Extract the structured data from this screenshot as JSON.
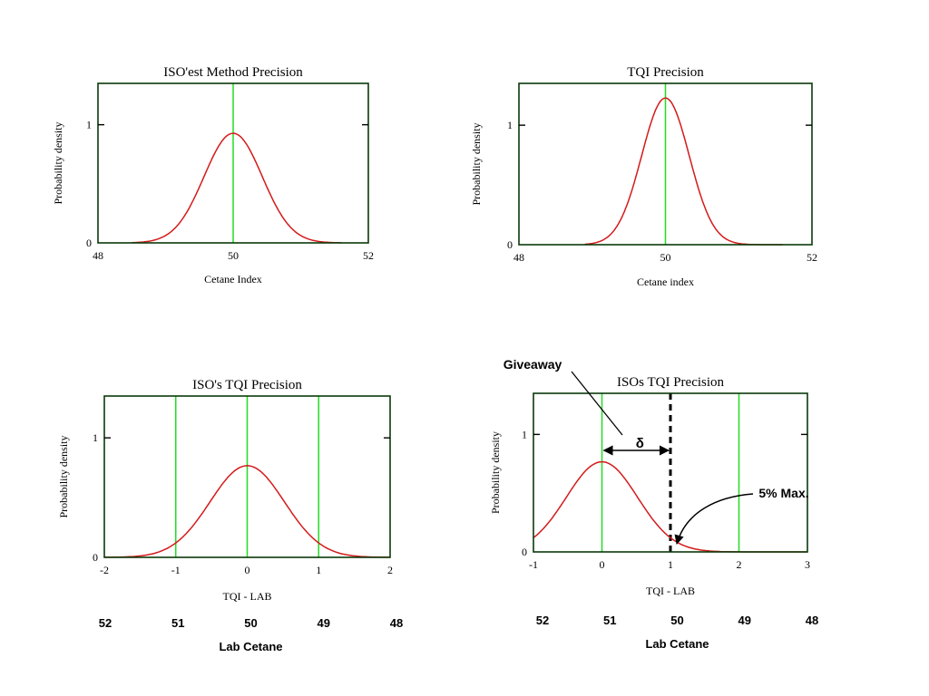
{
  "colors": {
    "curve": "#d41a1a",
    "guide": "#22dd22",
    "frame": "#0a3a0a",
    "text": "#000000"
  },
  "chart_data": [
    {
      "type": "line",
      "title": "ISO'est Method Precision",
      "xlabel": "Cetane Index",
      "ylabel": "Probability density",
      "xlim": [
        48,
        52
      ],
      "ylim": [
        0,
        1.35
      ],
      "xticks": [
        "48",
        "50",
        "52"
      ],
      "yticks": [
        "0",
        "1"
      ],
      "guides_x": [
        50
      ],
      "curve": {
        "mean": 50,
        "sd": 0.43,
        "from": 48.5,
        "to": 51.6
      }
    },
    {
      "type": "line",
      "title": "TQI Precision",
      "xlabel": "Cetane index",
      "ylabel": "Probability density",
      "xlim": [
        48,
        52
      ],
      "ylim": [
        0,
        1.35
      ],
      "xticks": [
        "48",
        "50",
        "52"
      ],
      "yticks": [
        "0",
        "1"
      ],
      "guides_x": [
        50
      ],
      "curve": {
        "mean": 50,
        "sd": 0.325,
        "from": 48.9,
        "to": 51.6
      }
    },
    {
      "type": "line",
      "title": "ISO's TQI Precision",
      "xlabel": "TQI - LAB",
      "ylabel": "Probability density",
      "xlim": [
        -2,
        2
      ],
      "ylim": [
        0,
        1.35
      ],
      "xticks": [
        "-2",
        "-1",
        "0",
        "1",
        "2"
      ],
      "yticks": [
        "0",
        "1"
      ],
      "guides_x": [
        -1,
        0,
        1
      ],
      "curve": {
        "mean": 0,
        "sd": 0.52,
        "from": -2,
        "to": 2
      },
      "secondary_xlabel": "Lab Cetane",
      "secondary_ticks": [
        "52",
        "51",
        "50",
        "49",
        "48"
      ]
    },
    {
      "type": "line",
      "title": "ISOs TQI Precision",
      "xlabel": "TQI - LAB",
      "ylabel": "Probability density",
      "xlim": [
        -1,
        3
      ],
      "ylim": [
        0,
        1.35
      ],
      "xticks": [
        "-1",
        "0",
        "1",
        "2",
        "3"
      ],
      "yticks": [
        "0",
        "1"
      ],
      "guides_x": [
        0,
        2
      ],
      "dashed_x": 1,
      "curve": {
        "mean": 0,
        "sd": 0.52,
        "from": -1,
        "to": 3
      },
      "secondary_xlabel": "Lab Cetane",
      "secondary_ticks": [
        "52",
        "51",
        "50",
        "49",
        "48"
      ],
      "annotations": {
        "giveaway": "Giveaway",
        "delta": "δ",
        "max": "5% Max."
      }
    }
  ]
}
